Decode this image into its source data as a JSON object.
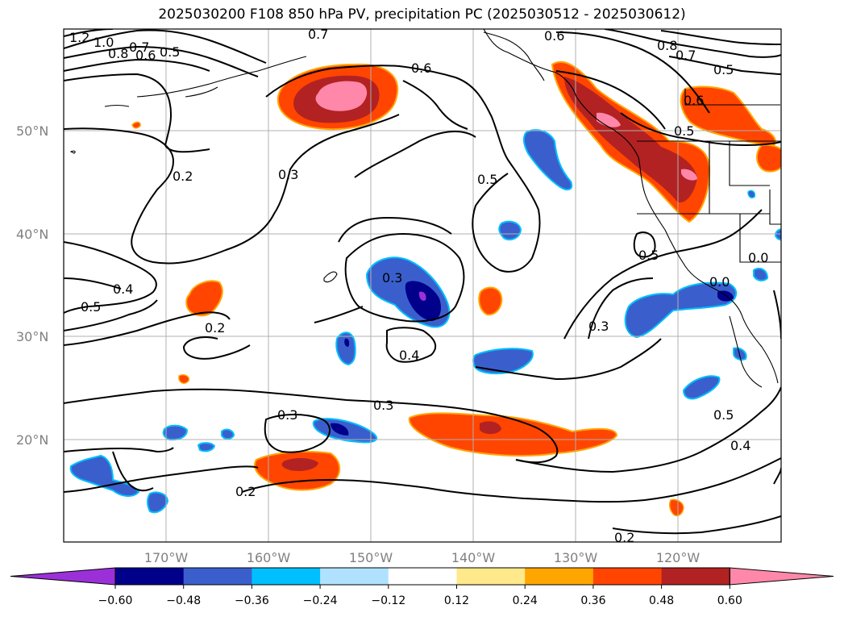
{
  "title": "2025030200 F108 850 hPa PV, precipitation PC (2025030512 - 2025030612)",
  "map": {
    "lon_labels": [
      "170°W",
      "160°W",
      "150°W",
      "140°W",
      "130°W",
      "120°W"
    ],
    "lat_labels": [
      "50°N",
      "40°N",
      "30°N",
      "20°N"
    ],
    "contour_labels": [
      "1.2",
      "1.0",
      "0.8",
      "0.7",
      "0.6",
      "0.5",
      "0.6",
      "0.7",
      "0.8",
      "0.7",
      "0.5",
      "0.6",
      "0.2",
      "0.3",
      "0.5",
      "0.5",
      "0.4",
      "0.5",
      "0.2",
      "0.3",
      "0.3",
      "0.4",
      "0.3",
      "0.3",
      "0.5",
      "0.4",
      "0.2",
      "0.2",
      "0.5",
      "0.0",
      "0.0",
      "0.6"
    ]
  },
  "colorbar": {
    "ticks": [
      "−0.60",
      "−0.48",
      "−0.36",
      "−0.24",
      "−0.12",
      "0.12",
      "0.24",
      "0.36",
      "0.48",
      "0.60"
    ],
    "colors": [
      "#9b30d9",
      "#00008b",
      "#3a5fcd",
      "#00bfff",
      "#b0e2ff",
      "#ffffff",
      "#ffe98a",
      "#ffa500",
      "#ff4500",
      "#b22222",
      "#ff88aa"
    ]
  }
}
